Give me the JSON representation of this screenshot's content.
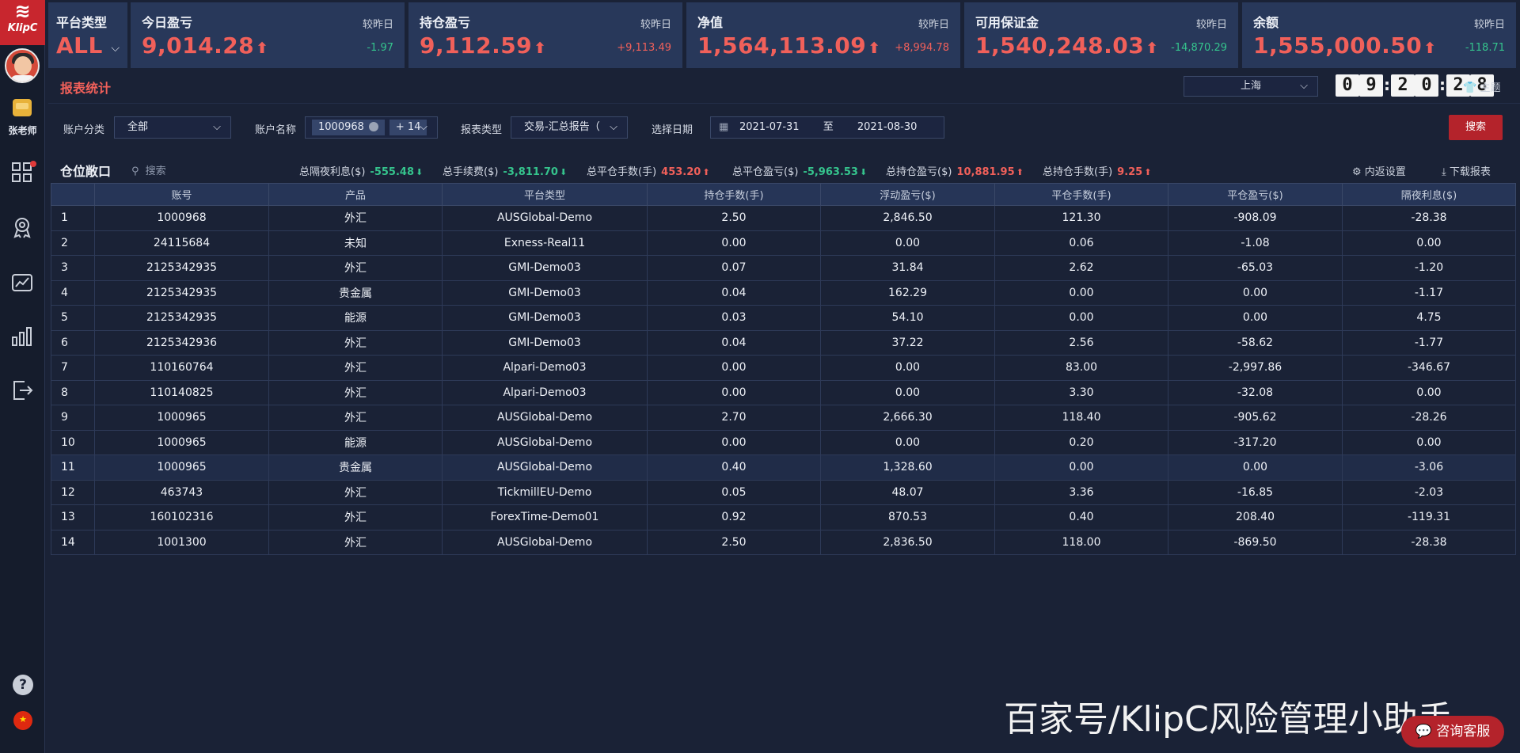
{
  "app": {
    "logo_text": "KlipC",
    "user_name": "张老师"
  },
  "cards": {
    "platform": {
      "title": "平台类型",
      "value": "ALL"
    },
    "items": [
      {
        "title": "今日盈亏",
        "compare": "较昨日",
        "value": "9,014.28",
        "delta": "-1.97",
        "delta_color": "#35c48d"
      },
      {
        "title": "持仓盈亏",
        "compare": "较昨日",
        "value": "9,112.59",
        "delta": "+9,113.49",
        "delta_color": "#f1605a"
      },
      {
        "title": "净值",
        "compare": "较昨日",
        "value": "1,564,113.09",
        "delta": "+8,994.78",
        "delta_color": "#f1605a"
      },
      {
        "title": "可用保证金",
        "compare": "较昨日",
        "value": "1,540,248.03",
        "delta": "-14,870.29",
        "delta_color": "#35c48d"
      },
      {
        "title": "余额",
        "compare": "较昨日",
        "value": "1,555,000.50",
        "delta": "-118.71",
        "delta_color": "#35c48d"
      }
    ]
  },
  "report": {
    "title": "报表统计",
    "city": "上海",
    "clock": [
      "0",
      "9",
      "2",
      "0",
      "2",
      "8"
    ],
    "theme_label": "主题"
  },
  "filters": {
    "account_category_label": "账户分类",
    "account_category_value": "全部",
    "account_name_label": "账户名称",
    "account_name_chip": "1000968",
    "account_name_more": "+ 14",
    "report_type_label": "报表类型",
    "report_type_value": "交易-汇总报告（",
    "date_label": "选择日期",
    "date_from": "2021-07-31",
    "date_to_sep": "至",
    "date_to": "2021-08-30",
    "search_label": "搜索"
  },
  "panel": {
    "title": "仓位敞口",
    "search_placeholder": "搜索",
    "summary": [
      {
        "label": "总隔夜利息($)",
        "value": "-555.48",
        "color": "#35c48d",
        "arrow": "⬇"
      },
      {
        "label": "总手续费($)",
        "value": "-3,811.70",
        "color": "#35c48d",
        "arrow": "⬇"
      },
      {
        "label": "总平仓手数(手)",
        "value": "453.20",
        "color": "#f1605a",
        "arrow": "⬆"
      },
      {
        "label": "总平仓盈亏($)",
        "value": "-5,963.53",
        "color": "#35c48d",
        "arrow": "⬇"
      },
      {
        "label": "总持仓盈亏($)",
        "value": "10,881.95",
        "color": "#f1605a",
        "arrow": "⬆"
      },
      {
        "label": "总持仓手数(手)",
        "value": "9.25",
        "color": "#f1605a",
        "arrow": "⬆"
      }
    ],
    "settings_label": "内返设置",
    "download_label": "下载报表"
  },
  "table": {
    "columns": [
      "",
      "账号",
      "产品",
      "平台类型",
      "持仓手数(手)",
      "浮动盈亏($)",
      "平仓手数(手)",
      "平仓盈亏($)",
      "隔夜利息($)"
    ],
    "rows": [
      [
        "1",
        "1000968",
        "外汇",
        "AUSGlobal-Demo",
        "2.50",
        "2,846.50",
        "121.30",
        "-908.09",
        "-28.38"
      ],
      [
        "2",
        "24115684",
        "未知",
        "Exness-Real11",
        "0.00",
        "0.00",
        "0.06",
        "-1.08",
        "0.00"
      ],
      [
        "3",
        "2125342935",
        "外汇",
        "GMI-Demo03",
        "0.07",
        "31.84",
        "2.62",
        "-65.03",
        "-1.20"
      ],
      [
        "4",
        "2125342935",
        "贵金属",
        "GMI-Demo03",
        "0.04",
        "162.29",
        "0.00",
        "0.00",
        "-1.17"
      ],
      [
        "5",
        "2125342935",
        "能源",
        "GMI-Demo03",
        "0.03",
        "54.10",
        "0.00",
        "0.00",
        "4.75"
      ],
      [
        "6",
        "2125342936",
        "外汇",
        "GMI-Demo03",
        "0.04",
        "37.22",
        "2.56",
        "-58.62",
        "-1.77"
      ],
      [
        "7",
        "110160764",
        "外汇",
        "Alpari-Demo03",
        "0.00",
        "0.00",
        "83.00",
        "-2,997.86",
        "-346.67"
      ],
      [
        "8",
        "110140825",
        "外汇",
        "Alpari-Demo03",
        "0.00",
        "0.00",
        "3.30",
        "-32.08",
        "0.00"
      ],
      [
        "9",
        "1000965",
        "外汇",
        "AUSGlobal-Demo",
        "2.70",
        "2,666.30",
        "118.40",
        "-905.62",
        "-28.26"
      ],
      [
        "10",
        "1000965",
        "能源",
        "AUSGlobal-Demo",
        "0.00",
        "0.00",
        "0.20",
        "-317.20",
        "0.00"
      ],
      [
        "11",
        "1000965",
        "贵金属",
        "AUSGlobal-Demo",
        "0.40",
        "1,328.60",
        "0.00",
        "0.00",
        "-3.06"
      ],
      [
        "12",
        "463743",
        "外汇",
        "TickmillEU-Demo",
        "0.05",
        "48.07",
        "3.36",
        "-16.85",
        "-2.03"
      ],
      [
        "13",
        "160102316",
        "外汇",
        "ForexTime-Demo01",
        "0.92",
        "870.53",
        "0.40",
        "208.40",
        "-119.31"
      ],
      [
        "14",
        "1001300",
        "外汇",
        "AUSGlobal-Demo",
        "2.50",
        "2,836.50",
        "118.00",
        "-869.50",
        "-28.38"
      ]
    ],
    "highlighted_row": 11
  },
  "watermark": "百家号/KlipC风险管理小助手",
  "chat_button": "咨询客服"
}
